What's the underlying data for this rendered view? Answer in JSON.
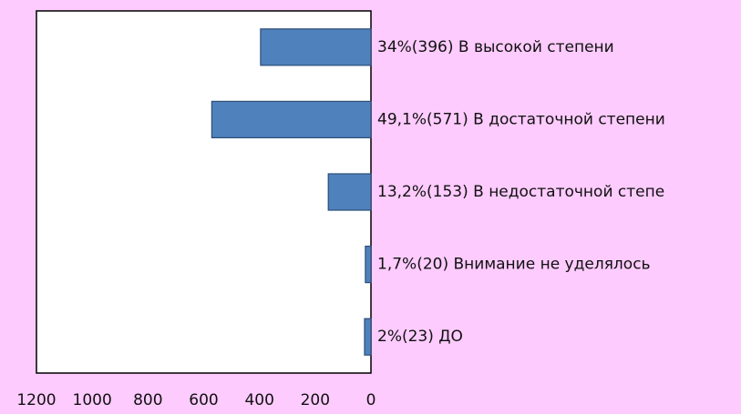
{
  "chart_data": {
    "type": "hbar",
    "categories": [
      "34%(396) В высокой степени",
      "49,1%(571) В достаточной степени",
      "13,2%(153) В недостаточной степе",
      "1,7%(20) Внимание не уделялось",
      "2%(23) ДО"
    ],
    "values": [
      396,
      571,
      153,
      20,
      23
    ],
    "color": "#4f81bd",
    "xlim": [
      1200,
      0
    ],
    "xticks": [
      1200,
      1000,
      800,
      600,
      400,
      200,
      0
    ],
    "grid": false
  }
}
